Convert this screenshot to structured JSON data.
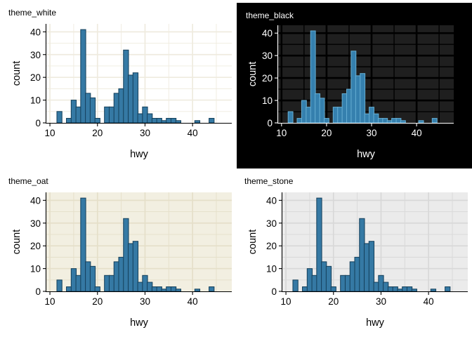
{
  "page": {
    "description": "Four histograms of hwy comparing ggplot themes",
    "panel_titles": [
      "theme_white",
      "theme_black",
      "theme_oat",
      "theme_stone"
    ]
  },
  "chart_data": {
    "type": "bar",
    "variant": "histogram",
    "xlabel": "hwy",
    "ylabel": "count",
    "bin_start": 12,
    "bin_step": 1,
    "bin_width": 1.07,
    "bin_centers": [
      12,
      13,
      14,
      15,
      16,
      17,
      18,
      19,
      20,
      21,
      22,
      23,
      24,
      25,
      26,
      27,
      28,
      29,
      30,
      31,
      32,
      33,
      34,
      35,
      36,
      37,
      38,
      39,
      40,
      41,
      42,
      43,
      44
    ],
    "counts": [
      5,
      0,
      2,
      10,
      7,
      41,
      13,
      11,
      2,
      0,
      7,
      7,
      13,
      15,
      32,
      21,
      22,
      4,
      7,
      4,
      2,
      2,
      1,
      2,
      2,
      1,
      0,
      0,
      0,
      1,
      0,
      0,
      2
    ],
    "x_major_ticks": [
      10,
      20,
      30,
      40
    ],
    "x_minor_ticks": [
      15,
      25,
      35,
      45
    ],
    "y_major_ticks": [
      0,
      10,
      20,
      30,
      40
    ],
    "y_minor_ticks": [
      5,
      15,
      25,
      35
    ],
    "xlim": [
      9.25,
      48.25
    ],
    "ylim": [
      0,
      43.5
    ],
    "grid": "major+minor",
    "legend": "none",
    "panels": [
      {
        "title": "theme_white",
        "outer_bg": "#ffffff",
        "panel_bg": "#ffffff",
        "grid_color": "#efebdf",
        "axis_color": "#000000",
        "text_color": "#000000",
        "bar_fill": "#3579a4",
        "bar_stroke": "#143f5a"
      },
      {
        "title": "theme_black",
        "outer_bg": "#000000",
        "panel_bg": "#1f1f1f",
        "grid_color": "#000000",
        "axis_color": "#ffffff",
        "text_color": "#ffffff",
        "bar_fill": "#3580ae",
        "bar_stroke": "#66aed3"
      },
      {
        "title": "theme_oat",
        "outer_bg": "#ffffff",
        "panel_bg": "#f2efe1",
        "grid_color": "#e5dfc9",
        "axis_color": "#000000",
        "text_color": "#000000",
        "bar_fill": "#3579a4",
        "bar_stroke": "#143f5a"
      },
      {
        "title": "theme_stone",
        "outer_bg": "#ffffff",
        "panel_bg": "#ebebeb",
        "grid_color": "#d8d8d8",
        "axis_color": "#000000",
        "text_color": "#000000",
        "bar_fill": "#3579a4",
        "bar_stroke": "#143f5a"
      }
    ]
  }
}
